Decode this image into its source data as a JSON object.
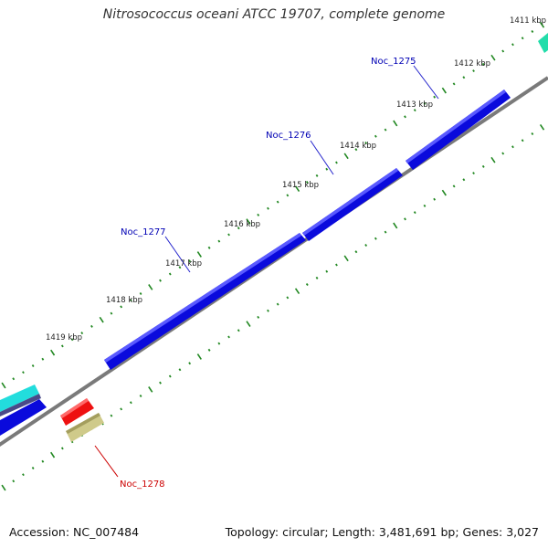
{
  "title": "Nitrosococcus oceani ATCC 19707, complete genome",
  "footer": {
    "accession": "Accession: NC_007484",
    "summary": "Topology: circular; Length: 3,481,691 bp; Genes: 3,027"
  },
  "ticks": [
    "1411 kbp",
    "1412 kbp",
    "1413 kbp",
    "1414 kbp",
    "1415 kbp",
    "1416 kbp",
    "1417 kbp",
    "1418 kbp",
    "1419 kbp"
  ],
  "genes": [
    {
      "label": "Noc_1275",
      "color": "#0000b4"
    },
    {
      "label": "Noc_1276",
      "color": "#0000b4"
    },
    {
      "label": "Noc_1277",
      "color": "#0000b4"
    },
    {
      "label": "Noc_1278",
      "color": "#cc0000"
    }
  ],
  "colors": {
    "forward_gene": "#0a0adc",
    "reverse_gene": "#ee1111",
    "cyan_gene": "#22dddd",
    "teal_gene": "#22ddaa",
    "olive_feature": "#cfca8a",
    "backbone": "#777777",
    "tick_green": "#228822"
  }
}
